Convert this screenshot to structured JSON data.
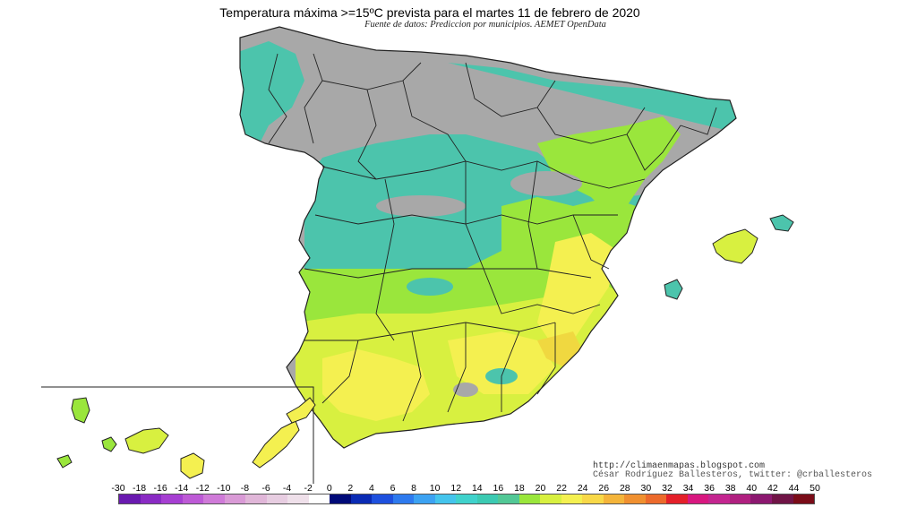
{
  "title": "Temperatura máxima >=15ºC prevista para el martes 11 de febrero de 2020",
  "subtitle": "Fuente de datos: Prediccion por municipios. AEMET OpenData",
  "credit": {
    "line1": "http://climaenmapas.blogspot.com",
    "line2": "César Rodríguez Ballesteros, twitter: @crballesteros"
  },
  "legend": {
    "labels": [
      "-30",
      "-18",
      "-16",
      "-14",
      "-12",
      "-10",
      "-8",
      "-6",
      "-4",
      "-2",
      "0",
      "2",
      "4",
      "6",
      "8",
      "10",
      "12",
      "14",
      "16",
      "18",
      "20",
      "22",
      "24",
      "26",
      "28",
      "30",
      "32",
      "34",
      "36",
      "38",
      "40",
      "42",
      "44",
      "50"
    ],
    "colors": [
      "#6a1ab0",
      "#8a2bc4",
      "#a63fd2",
      "#bd5ad6",
      "#cf7ad8",
      "#d99ad6",
      "#e0b6d8",
      "#e7cde1",
      "#efe0ea",
      "#ffffff",
      "#000a78",
      "#0a2bb4",
      "#1e50de",
      "#2e7aee",
      "#3ca2f2",
      "#44c4ec",
      "#40d2cc",
      "#3ccab2",
      "#52c896",
      "#9ae63c",
      "#d8f040",
      "#f4f050",
      "#f8d848",
      "#f4b43a",
      "#f09030",
      "#ec6a2c",
      "#e4202a",
      "#d81880",
      "#c42690",
      "#b02080",
      "#8c1870",
      "#701446",
      "#7a0c18"
    ]
  },
  "map_colors": {
    "gray": "#a8a8a8",
    "teal": "#4cc4ac",
    "lightgreen": "#9ae63c",
    "yellowgreen": "#d8f040",
    "yellow": "#f4f050",
    "orange": "#f0d840",
    "border": "#222222"
  }
}
